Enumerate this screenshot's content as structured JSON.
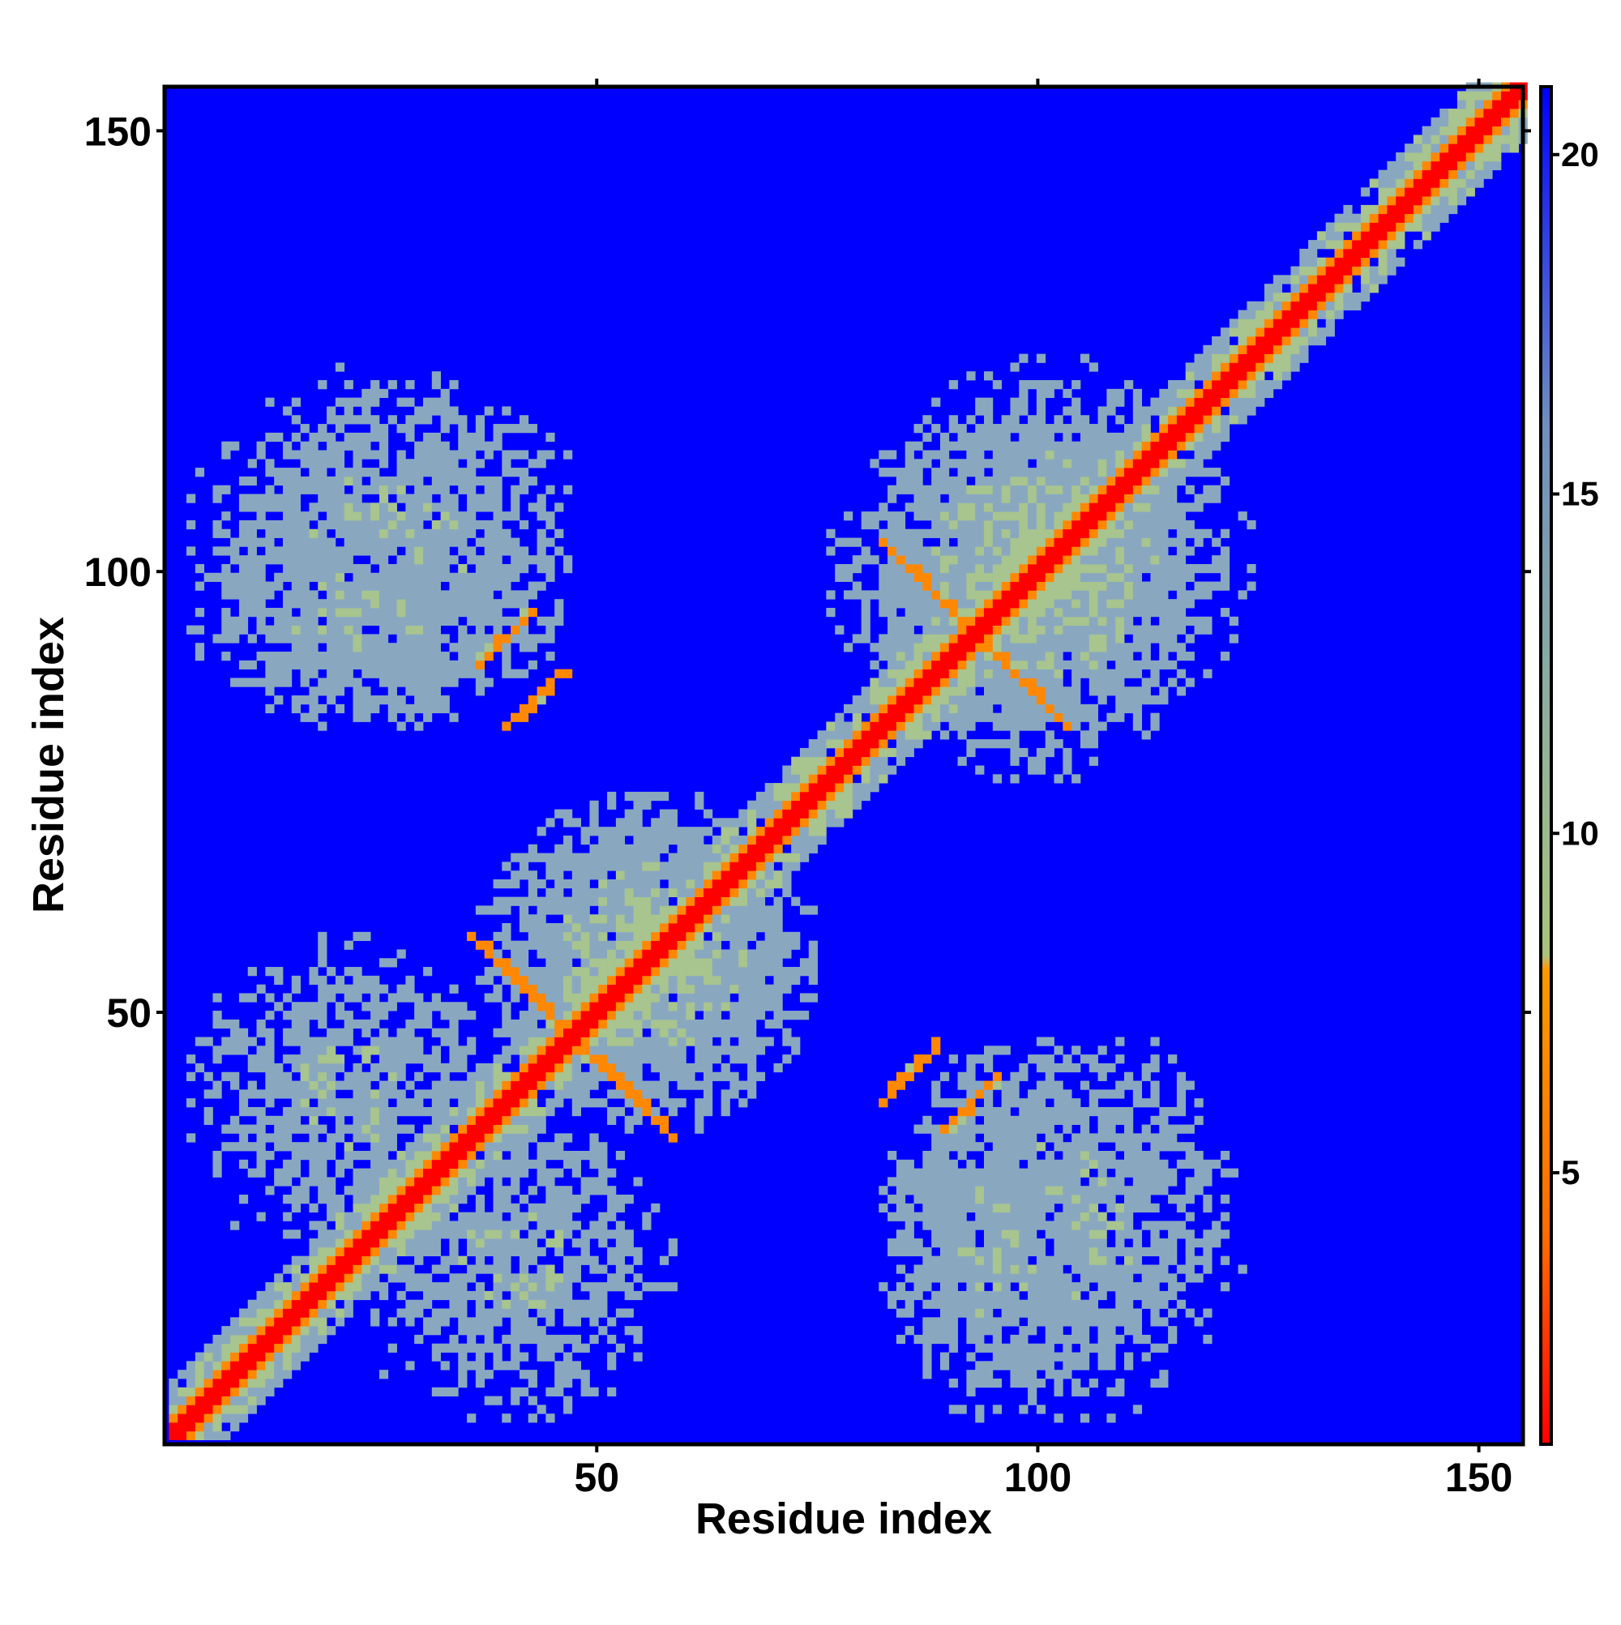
{
  "chart_data": {
    "type": "heatmap",
    "title": "",
    "xlabel": "Residue index",
    "ylabel": "Residue index",
    "xlim": [
      1,
      155
    ],
    "ylim": [
      1,
      155
    ],
    "xticks": [
      50,
      100,
      150
    ],
    "yticks": [
      50,
      100,
      150
    ],
    "grid": false,
    "colorbar": {
      "position": "right",
      "range": [
        1,
        21
      ],
      "ticks": [
        5,
        10,
        15,
        20
      ],
      "colors": [
        "#ff0000",
        "#ff6a00",
        "#ff9900",
        "#a9c37a",
        "#94b496",
        "#6f8fbf",
        "#0000ff"
      ],
      "color_stops": [
        1,
        4,
        8,
        8.2,
        11,
        16,
        21
      ]
    },
    "cell_color_levels": {
      "very_close": "#ff0000",
      "close": "#ff8800",
      "medium": "#a8c48f",
      "far": "#89a8c0",
      "background": "#0000ff"
    },
    "structure_regions": [
      {
        "kind": "diagonal",
        "from": 1,
        "to": 155,
        "value": 1
      },
      {
        "kind": "diagonal_band",
        "from": 1,
        "to": 155,
        "width": 6,
        "value": 9
      },
      {
        "kind": "blob",
        "x_range": [
          35,
          75
        ],
        "y_range": [
          35,
          75
        ],
        "value": 11
      },
      {
        "kind": "blob",
        "x_range": [
          75,
          125
        ],
        "y_range": [
          80,
          120
        ],
        "value": 11
      },
      {
        "kind": "blob",
        "x_range": [
          1,
          45
        ],
        "y_range": [
          80,
          110
        ],
        "value": 12
      },
      {
        "kind": "blob",
        "x_range": [
          80,
          125
        ],
        "y_range": [
          1,
          50
        ],
        "value": 12
      },
      {
        "kind": "blob",
        "x_range": [
          20,
          60
        ],
        "y_range": [
          1,
          40
        ],
        "value": 12
      },
      {
        "kind": "antidiagonal_strand",
        "x_range": [
          82,
          100
        ],
        "y_range": [
          85,
          103
        ],
        "value": 5
      },
      {
        "kind": "antidiagonal_strand",
        "x_range": [
          35,
          55
        ],
        "y_range": [
          38,
          58
        ],
        "value": 5
      },
      {
        "kind": "parallel_strand",
        "x_range": [
          36,
          42
        ],
        "y_range": [
          89,
          95
        ],
        "value": 5
      },
      {
        "kind": "parallel_strand",
        "x_range": [
          82,
          88
        ],
        "y_range": [
          39,
          45
        ],
        "value": 5
      }
    ]
  }
}
